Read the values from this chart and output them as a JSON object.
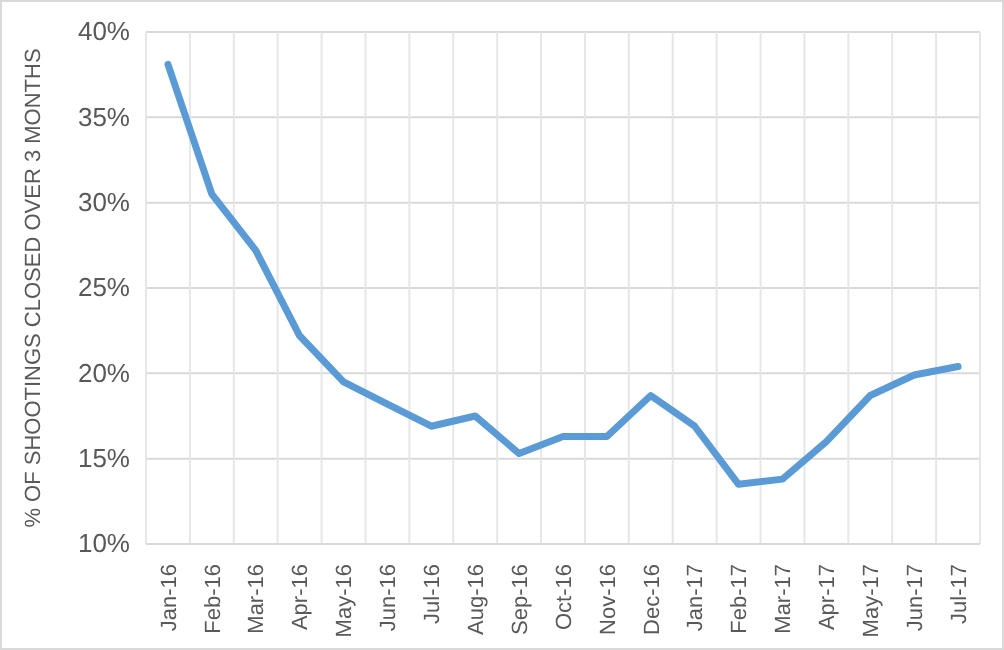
{
  "chart_data": {
    "type": "line",
    "ylabel": "% OF SHOOTINGS CLOSED OVER 3 MONTHS",
    "categories": [
      "Jan-16",
      "Feb-16",
      "Mar-16",
      "Apr-16",
      "May-16",
      "Jun-16",
      "Jul-16",
      "Aug-16",
      "Sep-16",
      "Oct-16",
      "Nov-16",
      "Dec-16",
      "Jan-17",
      "Feb-17",
      "Mar-17",
      "Apr-17",
      "May-17",
      "Jun-17",
      "Jul-17"
    ],
    "series": [
      {
        "color": "#5b9bd5",
        "values": [
          38.1,
          30.5,
          27.2,
          22.2,
          19.5,
          18.2,
          16.9,
          17.5,
          15.3,
          16.3,
          16.3,
          18.7,
          16.9,
          13.5,
          13.8,
          16.0,
          18.7,
          19.9,
          20.4
        ]
      }
    ],
    "ylim": [
      10,
      40
    ],
    "yticks": [
      {
        "value": 10,
        "label": "10%"
      },
      {
        "value": 15,
        "label": "15%"
      },
      {
        "value": 20,
        "label": "20%"
      },
      {
        "value": 25,
        "label": "25%"
      },
      {
        "value": 30,
        "label": "30%"
      },
      {
        "value": 35,
        "label": "35%"
      },
      {
        "value": 40,
        "label": "40%"
      }
    ],
    "grid": true,
    "marker": "none",
    "line_style": "solid"
  }
}
